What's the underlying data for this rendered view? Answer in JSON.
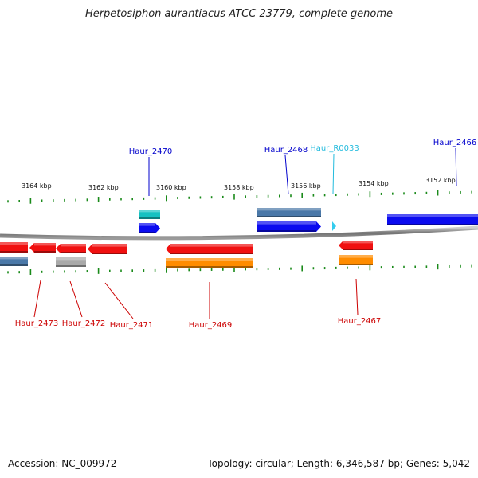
{
  "title": "Herpetosiphon aurantiacus ATCC 23779, complete genome",
  "footer": {
    "accession": "Accession: NC_009972",
    "summary": "Topology: circular; Length: 6,346,587 bp; Genes: 5,042"
  },
  "colors": {
    "forward_cds": "#0b0bef",
    "reverse_cds": "#f01010",
    "forward_gene": "#4a78a8",
    "reverse_gene": "#ff8c00",
    "pseudo": "#a9a9a9",
    "rna_gene": "#16c1c1",
    "rna": "#33ccee",
    "backbone": "#808080",
    "tick": "#1a8a1a",
    "forward_label": "#0000cc",
    "reverse_label": "#cc0000",
    "rna_label": "#22bbdd"
  },
  "scale_labels": [
    "3164 kbp",
    "3162 kbp",
    "3160 kbp",
    "3158 kbp",
    "3156 kbp",
    "3154 kbp",
    "3152 kbp"
  ],
  "gene_labels": {
    "top": [
      "Haur_2470",
      "Haur_2468",
      "Haur_R0033",
      "Haur_2466"
    ],
    "bottom": [
      "Haur_2473",
      "Haur_2472",
      "Haur_2471",
      "Haur_2469",
      "Haur_2467"
    ]
  }
}
